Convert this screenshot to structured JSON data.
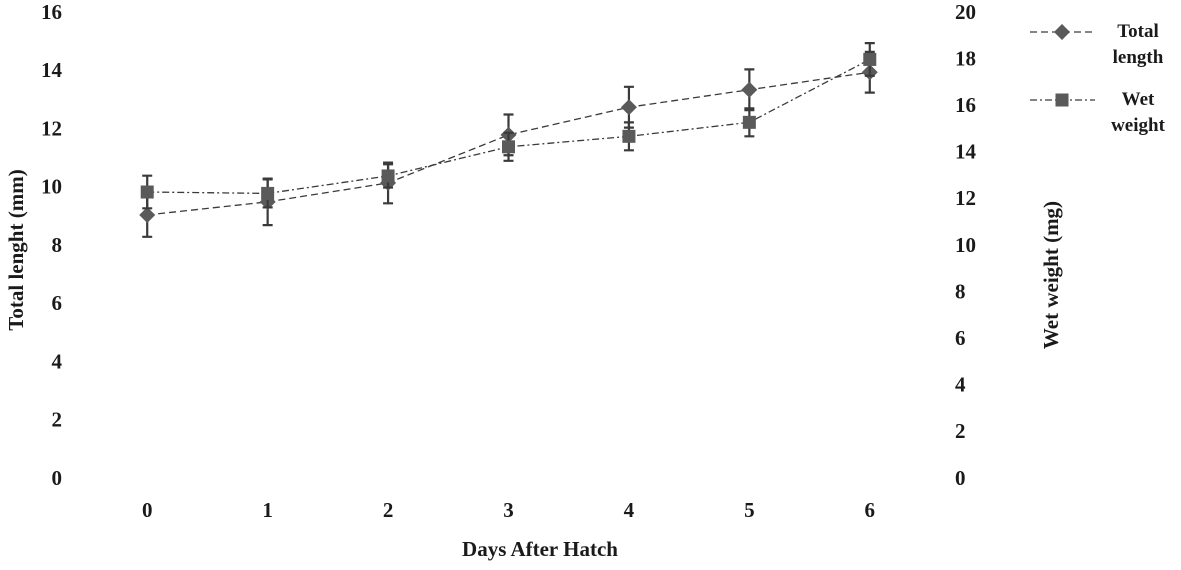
{
  "chart_data": {
    "type": "line",
    "x_label": "Days After Hatch",
    "y_label": "Total lenght (mm)",
    "y2_label": "Wet weight (mg)",
    "categories": [
      "0",
      "1",
      "2",
      "3",
      "4",
      "5",
      "6"
    ],
    "ylim": [
      0,
      16
    ],
    "yticks": [
      0,
      2,
      4,
      6,
      8,
      10,
      12,
      14,
      16
    ],
    "y2lim": [
      0,
      20
    ],
    "y2ticks": [
      0,
      2,
      4,
      6,
      8,
      10,
      12,
      14,
      16,
      18,
      20
    ],
    "legend": "right",
    "series": [
      {
        "name": "Total length",
        "color": "#5a5a5a",
        "marker": "diamond",
        "dash": "dashed",
        "values": [
          9.1,
          9.55,
          10.2,
          11.85,
          12.8,
          13.4,
          14.0
        ],
        "errors": [
          0.75,
          0.8,
          0.7,
          0.7,
          0.7,
          0.7,
          0.7
        ]
      },
      {
        "name": "Wet weight",
        "color": "#5a5a5a",
        "marker": "square",
        "dash": "dashdot",
        "axis": "y2",
        "values": [
          12.36,
          12.3,
          13.05,
          14.3,
          14.75,
          15.35,
          18.05
        ],
        "errors": [
          0.7,
          0.6,
          0.5,
          0.6,
          0.6,
          0.6,
          0.7
        ]
      }
    ]
  }
}
